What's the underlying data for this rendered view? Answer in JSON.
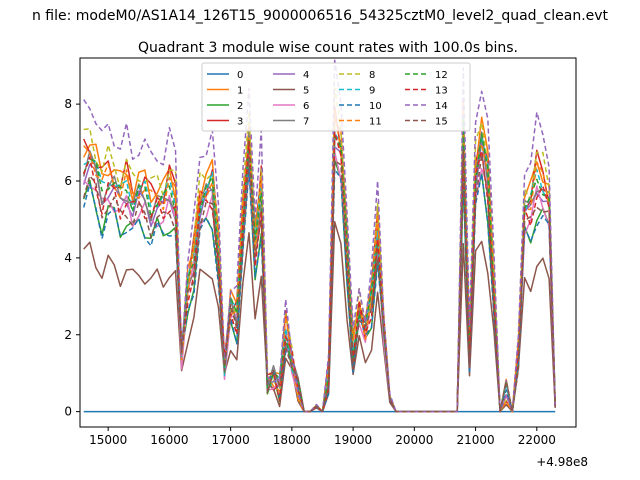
{
  "figure": {
    "suptitle": "n file: modeM0/AS1A14_126T15_9000006516_54325cztM0_level2_quad_clean.evt",
    "offset_label": "+4.98e8"
  },
  "chart_data": {
    "type": "line",
    "title": "Quadrant 3 module wise count rates with 100.0s bins.",
    "xlabel": "",
    "ylabel": "",
    "x_offset": 498000000,
    "xlim": [
      14540,
      22640
    ],
    "ylim": [
      -0.4,
      9.2
    ],
    "x_ticks": [
      15000,
      16000,
      17000,
      18000,
      19000,
      20000,
      21000,
      22000
    ],
    "y_ticks": [
      0,
      2,
      4,
      6,
      8
    ],
    "grid": false,
    "legend_position": "top-center",
    "legend_columns": 4,
    "x": [
      14600,
      14700,
      14800,
      14900,
      15000,
      15100,
      15200,
      15300,
      15400,
      15500,
      15600,
      15700,
      15800,
      15900,
      16000,
      16100,
      16200,
      16300,
      16400,
      16500,
      16600,
      16700,
      16800,
      16900,
      17000,
      17100,
      17200,
      17300,
      17400,
      17500,
      17600,
      17700,
      17800,
      17900,
      18000,
      18100,
      18200,
      18300,
      18400,
      18500,
      18600,
      18700,
      18800,
      18900,
      19000,
      19100,
      19200,
      19300,
      19400,
      19500,
      19600,
      19700,
      19800,
      20700,
      20800,
      20900,
      21000,
      21100,
      21200,
      21300,
      21400,
      21500,
      21600,
      21700,
      21800,
      21900,
      22000,
      22100,
      22200,
      22300
    ],
    "base_profile": [
      0.85,
      0.88,
      0.82,
      0.75,
      0.8,
      0.78,
      0.73,
      0.77,
      0.72,
      0.75,
      0.74,
      0.7,
      0.73,
      0.71,
      0.76,
      0.72,
      0.2,
      0.42,
      0.52,
      0.72,
      0.75,
      0.77,
      0.55,
      0.16,
      0.36,
      0.32,
      0.66,
      0.94,
      0.55,
      0.75,
      0.1,
      0.12,
      0.08,
      0.28,
      0.18,
      0.08,
      0.0,
      0.0,
      0.02,
      0.0,
      0.12,
      0.98,
      0.9,
      0.55,
      0.2,
      0.36,
      0.28,
      0.38,
      0.62,
      0.3,
      0.05,
      0.0,
      0.0,
      0.0,
      0.96,
      0.2,
      0.82,
      0.93,
      0.8,
      0.42,
      0.0,
      0.07,
      0.0,
      0.2,
      0.7,
      0.7,
      0.8,
      0.78,
      0.72,
      0.02
    ],
    "series": [
      {
        "name": "0",
        "color": "#1f77b4",
        "dash": "solid",
        "scale": 0.0,
        "jitter": 0.0
      },
      {
        "name": "1",
        "color": "#ff7f0e",
        "dash": "solid",
        "scale": 8.1,
        "jitter": 0.35
      },
      {
        "name": "2",
        "color": "#2ca02c",
        "dash": "solid",
        "scale": 6.5,
        "jitter": 0.3
      },
      {
        "name": "3",
        "color": "#d62728",
        "dash": "solid",
        "scale": 8.0,
        "jitter": 0.4
      },
      {
        "name": "4",
        "color": "#9467bd",
        "dash": "solid",
        "scale": 7.3,
        "jitter": 0.3
      },
      {
        "name": "5",
        "color": "#8c564b",
        "dash": "solid",
        "scale": 4.8,
        "jitter": 0.25
      },
      {
        "name": "6",
        "color": "#e377c2",
        "dash": "solid",
        "scale": 7.0,
        "jitter": 0.3
      },
      {
        "name": "7",
        "color": "#7f7f7f",
        "dash": "solid",
        "scale": 7.5,
        "jitter": 0.3
      },
      {
        "name": "8",
        "color": "#bcbd22",
        "dash": "dashed",
        "scale": 8.3,
        "jitter": 0.3
      },
      {
        "name": "9",
        "color": "#17becf",
        "dash": "dashed",
        "scale": 7.7,
        "jitter": 0.3
      },
      {
        "name": "10",
        "color": "#1f77b4",
        "dash": "dashed",
        "scale": 6.4,
        "jitter": 0.3
      },
      {
        "name": "11",
        "color": "#ff7f0e",
        "dash": "dashed",
        "scale": 7.8,
        "jitter": 0.3
      },
      {
        "name": "12",
        "color": "#2ca02c",
        "dash": "dashed",
        "scale": 7.6,
        "jitter": 0.3
      },
      {
        "name": "13",
        "color": "#d62728",
        "dash": "dashed",
        "scale": 7.2,
        "jitter": 0.3
      },
      {
        "name": "14",
        "color": "#9467bd",
        "dash": "dashed",
        "scale": 9.3,
        "jitter": 0.35
      },
      {
        "name": "15",
        "color": "#8c564b",
        "dash": "dashed",
        "scale": 6.9,
        "jitter": 0.3
      }
    ]
  }
}
